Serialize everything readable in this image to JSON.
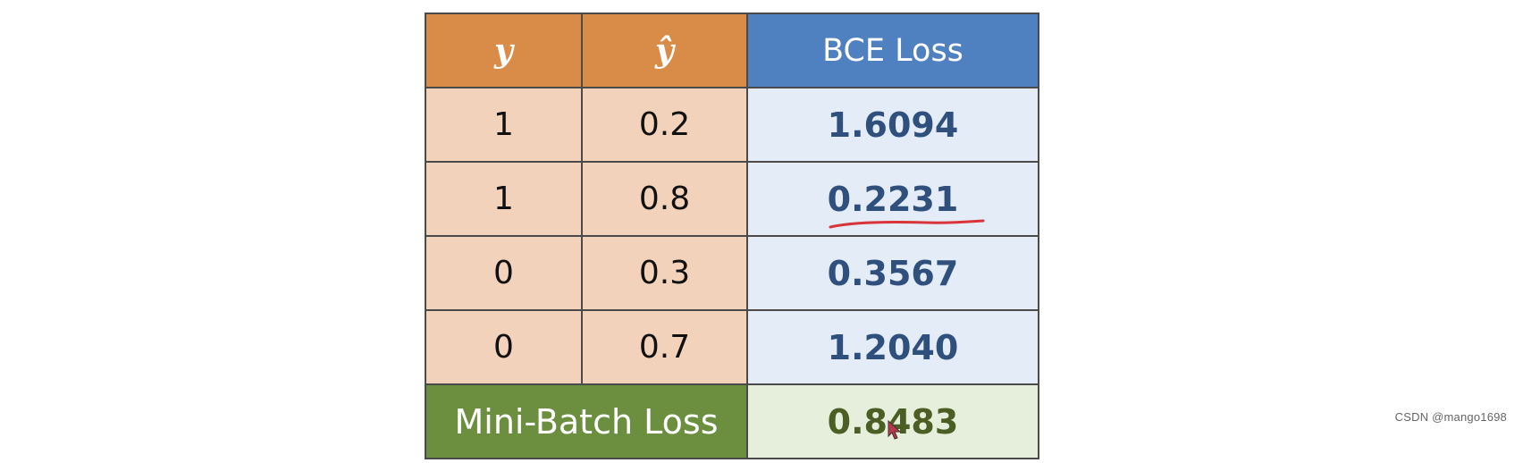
{
  "table": {
    "headers": {
      "y": "y",
      "y_hat": "ŷ",
      "bce_loss": "BCE Loss"
    },
    "rows": [
      {
        "y": "1",
        "y_hat": "0.2",
        "bce_loss": "1.6094"
      },
      {
        "y": "1",
        "y_hat": "0.8",
        "bce_loss": "0.2231"
      },
      {
        "y": "0",
        "y_hat": "0.3",
        "bce_loss": "0.3567"
      },
      {
        "y": "0",
        "y_hat": "0.7",
        "bce_loss": "1.2040"
      }
    ],
    "footer": {
      "label": "Mini-Batch Loss",
      "value": "0.8483"
    }
  },
  "watermark": {
    "text": "CSDN @mango1698"
  },
  "colors": {
    "header_orange": "#d98c48",
    "header_blue": "#4f80bf",
    "peach": "#f2d2bb",
    "light_blue": "#e3ecf7",
    "loss_text_blue": "#2f4f7d",
    "footer_green": "#6b8f3f",
    "footer_light_green": "#e6efdb",
    "annotation_red": "#d9343a"
  },
  "annotations": {
    "underline_icon": "red-handwritten-underline",
    "cursor_icon": "mouse-pointer-icon"
  }
}
